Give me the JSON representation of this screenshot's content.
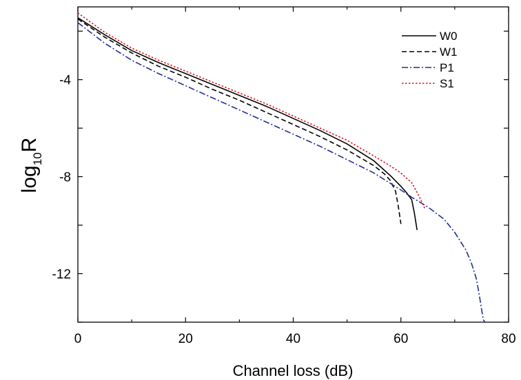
{
  "chart_data": {
    "type": "line",
    "xlabel": "Channel loss (dB)",
    "ylabel_main": "log",
    "ylabel_sub": "10",
    "ylabel_tail": "R",
    "xlim": [
      0,
      80
    ],
    "ylim": [
      -14,
      -1
    ],
    "xticks": [
      0,
      20,
      40,
      60,
      80
    ],
    "yticks": [
      -4,
      -8,
      -12
    ],
    "grid": false,
    "legend_position": "top-right",
    "series": [
      {
        "name": "W0",
        "color": "#000000",
        "dash": "solid",
        "x": [
          0,
          5,
          10,
          15,
          20,
          25,
          30,
          35,
          40,
          45,
          50,
          55,
          58,
          60,
          61,
          62,
          62.5,
          63
        ],
        "y": [
          -1.45,
          -2.15,
          -2.8,
          -3.3,
          -3.75,
          -4.2,
          -4.65,
          -5.1,
          -5.6,
          -6.1,
          -6.65,
          -7.35,
          -7.95,
          -8.4,
          -8.65,
          -8.95,
          -9.5,
          -10.2
        ]
      },
      {
        "name": "W1",
        "color": "#000000",
        "dash": "dashed",
        "x": [
          0,
          5,
          10,
          15,
          20,
          25,
          30,
          35,
          40,
          45,
          50,
          55,
          57,
          58,
          59,
          59.5,
          60
        ],
        "y": [
          -1.5,
          -2.25,
          -2.9,
          -3.45,
          -3.9,
          -4.4,
          -4.85,
          -5.35,
          -5.85,
          -6.35,
          -6.9,
          -7.55,
          -7.9,
          -8.15,
          -8.6,
          -9.2,
          -9.95
        ]
      },
      {
        "name": "P1",
        "color": "#1f2d8f",
        "dash": "dashdot",
        "x": [
          0,
          5,
          10,
          15,
          20,
          25,
          30,
          35,
          40,
          45,
          50,
          55,
          60,
          62,
          65,
          68,
          70,
          72,
          73,
          74,
          74.5,
          75,
          75.3,
          75.6
        ],
        "y": [
          -1.65,
          -2.5,
          -3.2,
          -3.75,
          -4.25,
          -4.75,
          -5.25,
          -5.75,
          -6.25,
          -6.75,
          -7.3,
          -7.85,
          -8.55,
          -8.85,
          -9.25,
          -9.75,
          -10.3,
          -11.0,
          -11.5,
          -12.2,
          -12.8,
          -13.5,
          -13.9,
          -14.0
        ]
      },
      {
        "name": "S1",
        "color": "#e0161c",
        "dash": "dotted",
        "x": [
          0,
          5,
          10,
          15,
          20,
          25,
          30,
          35,
          40,
          45,
          50,
          55,
          58,
          60,
          62,
          63,
          63.8,
          64.5
        ],
        "y": [
          -1.25,
          -2.05,
          -2.7,
          -3.2,
          -3.65,
          -4.1,
          -4.55,
          -5.0,
          -5.5,
          -6.0,
          -6.5,
          -7.15,
          -7.55,
          -7.85,
          -8.25,
          -8.65,
          -9.0,
          -9.35
        ]
      }
    ]
  }
}
